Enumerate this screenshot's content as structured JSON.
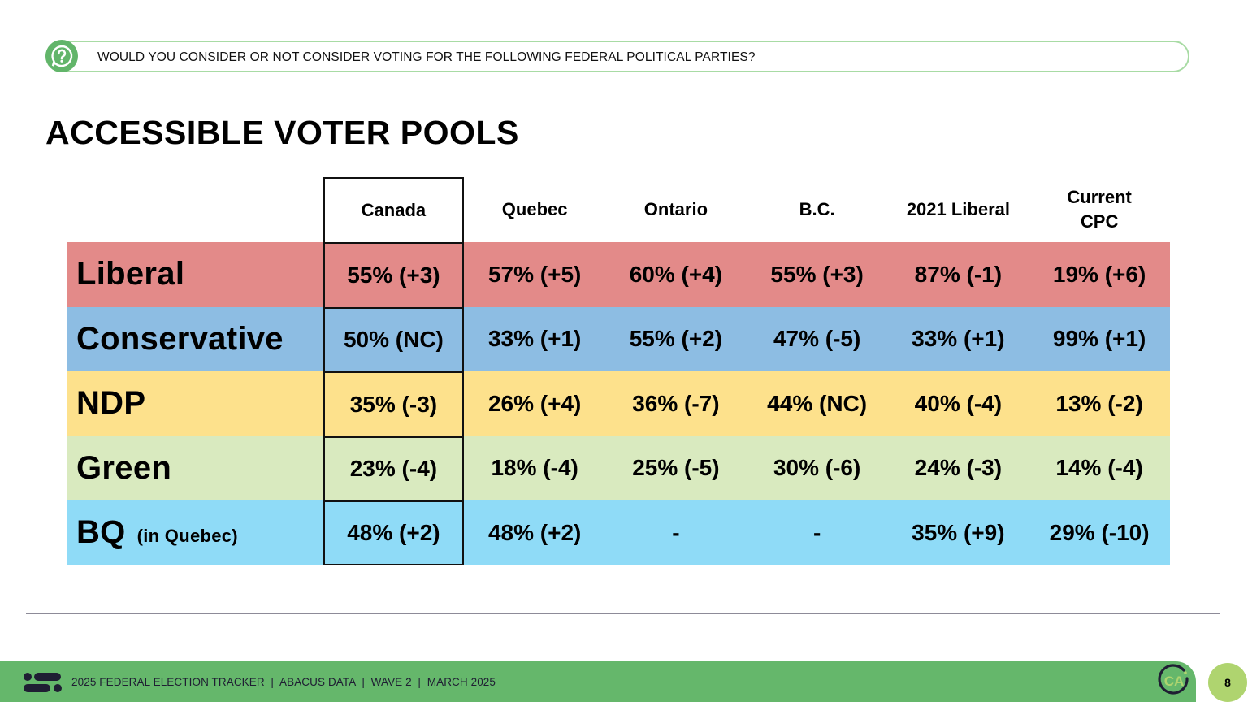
{
  "question": {
    "icon": "question-bubble-icon",
    "text": "WOULD YOU CONSIDER OR NOT CONSIDER VOTING FOR THE FOLLOWING FEDERAL POLITICAL PARTIES?"
  },
  "title": "ACCESSIBLE VOTER POOLS",
  "table": {
    "columns": [
      "Canada",
      "Quebec",
      "Ontario",
      "B.C.",
      "2021 Liberal",
      "Current CPC"
    ],
    "column_lines": [
      [
        "Canada"
      ],
      [
        "Quebec"
      ],
      [
        "Ontario"
      ],
      [
        "B.C."
      ],
      [
        "2021 Liberal"
      ],
      [
        "Current",
        "CPC"
      ]
    ],
    "rows": [
      {
        "party": "Liberal",
        "note": "",
        "color": "#e38a89",
        "values": [
          "55% (+3)",
          "57% (+5)",
          "60% (+4)",
          "55% (+3)",
          "87% (-1)",
          "19% (+6)"
        ]
      },
      {
        "party": "Conservative",
        "note": "",
        "color": "#8dbde3",
        "values": [
          "50% (NC)",
          "33% (+1)",
          "55% (+2)",
          "47% (-5)",
          "33% (+1)",
          "99% (+1)"
        ]
      },
      {
        "party": "NDP",
        "note": "",
        "color": "#fde18c",
        "values": [
          "35% (-3)",
          "26% (+4)",
          "36% (-7)",
          "44% (NC)",
          "40% (-4)",
          "13% (-2)"
        ]
      },
      {
        "party": "Green",
        "note": "",
        "color": "#d9eabf",
        "values": [
          "23% (-4)",
          "18% (-4)",
          "25% (-5)",
          "30% (-6)",
          "24% (-3)",
          "14% (-4)"
        ]
      },
      {
        "party": "BQ",
        "note": "(in Quebec)",
        "color": "#8fdbf7",
        "values": [
          "48% (+2)",
          "48% (+2)",
          "-",
          "-",
          "35% (+9)",
          "29% (-10)"
        ]
      }
    ]
  },
  "footer": {
    "logo": "abacus-logo-icon",
    "text": "2025 FEDERAL ELECTION TRACKER  |  ABACUS DATA  |  WAVE 2  |  MARCH 2025",
    "badge_text": "CA",
    "page_number": "8",
    "colors": {
      "bar": "#65b76b",
      "page_circle": "#afd46f",
      "accent_line": "#a8dba4"
    }
  }
}
